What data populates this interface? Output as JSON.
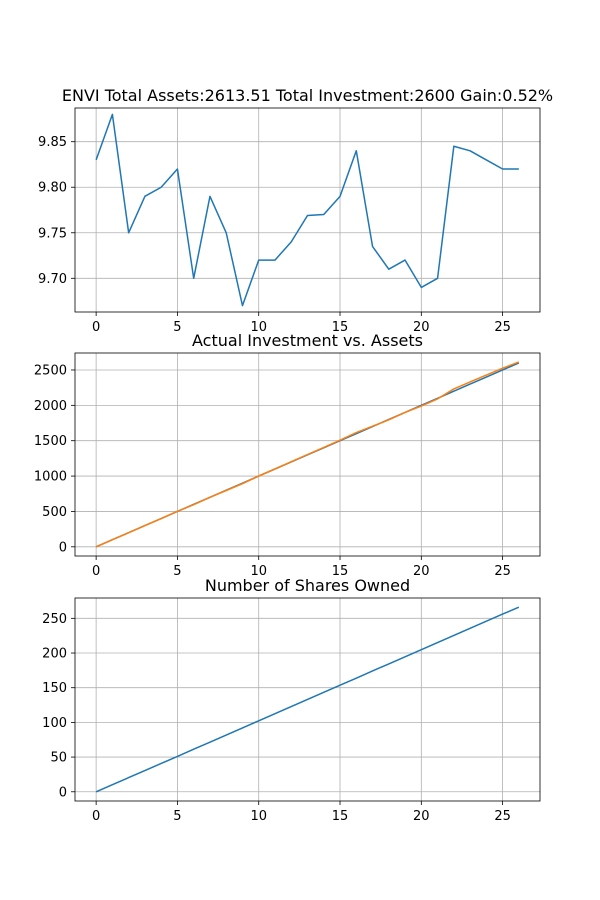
{
  "chart_data": [
    {
      "type": "line",
      "title": "ENVI Total Assets:2613.51  Total Investment:2600  Gain:0.52%",
      "xlabel": "",
      "ylabel": "",
      "xlim": [
        -1.3,
        27.3
      ],
      "ylim": [
        9.663,
        9.887
      ],
      "grid": true,
      "xticks": [
        0,
        5,
        10,
        15,
        20,
        25
      ],
      "yticks": [
        9.7,
        9.75,
        9.8,
        9.85
      ],
      "ytick_labels": [
        "9.70",
        "9.75",
        "9.80",
        "9.85"
      ],
      "x": [
        0,
        1,
        2,
        3,
        4,
        5,
        6,
        7,
        8,
        9,
        10,
        11,
        12,
        13,
        14,
        15,
        16,
        17,
        18,
        19,
        20,
        21,
        22,
        23,
        24,
        25,
        26
      ],
      "series": [
        {
          "color": "#1f77b4",
          "values": [
            9.83,
            9.88,
            9.75,
            9.79,
            9.8,
            9.82,
            9.7,
            9.79,
            9.75,
            9.67,
            9.72,
            9.72,
            9.74,
            9.769,
            9.77,
            9.79,
            9.84,
            9.735,
            9.71,
            9.72,
            9.69,
            9.7,
            9.845,
            9.84,
            9.83,
            9.82,
            9.82
          ]
        }
      ]
    },
    {
      "type": "line",
      "title": "Actual Investment vs. Assets",
      "xlabel": "",
      "ylabel": "",
      "xlim": [
        -1.3,
        27.3
      ],
      "ylim": [
        -130,
        2740
      ],
      "grid": true,
      "xticks": [
        0,
        5,
        10,
        15,
        20,
        25
      ],
      "yticks": [
        0,
        500,
        1000,
        1500,
        2000,
        2500
      ],
      "ytick_labels": [
        "0",
        "500",
        "1000",
        "1500",
        "2000",
        "2500"
      ],
      "x": [
        0,
        1,
        2,
        3,
        4,
        5,
        6,
        7,
        8,
        9,
        10,
        11,
        12,
        13,
        14,
        15,
        16,
        17,
        18,
        19,
        20,
        21,
        22,
        23,
        24,
        25,
        26
      ],
      "series": [
        {
          "color": "#1f77b4",
          "values": [
            0,
            100,
            200,
            300,
            400,
            500,
            600,
            700,
            800,
            900,
            1000,
            1100,
            1200,
            1300,
            1400,
            1500,
            1600,
            1700,
            1800,
            1900,
            2000,
            2100,
            2200,
            2300,
            2400,
            2500,
            2600
          ]
        },
        {
          "color": "#ff7f0e",
          "values": [
            0,
            101,
            199,
            300,
            400,
            502,
            596,
            700,
            796,
            893,
            1001,
            1101,
            1203,
            1305,
            1405,
            1508,
            1615,
            1705,
            1795,
            1900,
            1990,
            2091,
            2232,
            2331,
            2428,
            2525,
            2613.51
          ]
        }
      ]
    },
    {
      "type": "line",
      "title": "Number of Shares Owned",
      "xlabel": "",
      "ylabel": "",
      "xlim": [
        -1.3,
        27.3
      ],
      "ylim": [
        -13.3,
        279.3
      ],
      "grid": true,
      "xticks": [
        0,
        5,
        10,
        15,
        20,
        25
      ],
      "yticks": [
        0,
        50,
        100,
        150,
        200,
        250
      ],
      "ytick_labels": [
        "0",
        "50",
        "100",
        "150",
        "200",
        "250"
      ],
      "x": [
        0,
        1,
        2,
        3,
        4,
        5,
        6,
        7,
        8,
        9,
        10,
        11,
        12,
        13,
        14,
        15,
        16,
        17,
        18,
        19,
        20,
        21,
        22,
        23,
        24,
        25,
        26
      ],
      "series": [
        {
          "color": "#1f77b4",
          "values": [
            0,
            10.2,
            20.4,
            30.6,
            40.8,
            51.0,
            61.3,
            71.5,
            81.7,
            92.0,
            102.3,
            112.5,
            122.8,
            133.1,
            143.3,
            153.6,
            163.8,
            174.1,
            184.3,
            194.6,
            204.8,
            215.1,
            225.3,
            235.6,
            245.8,
            256.1,
            266.0
          ]
        }
      ]
    }
  ]
}
